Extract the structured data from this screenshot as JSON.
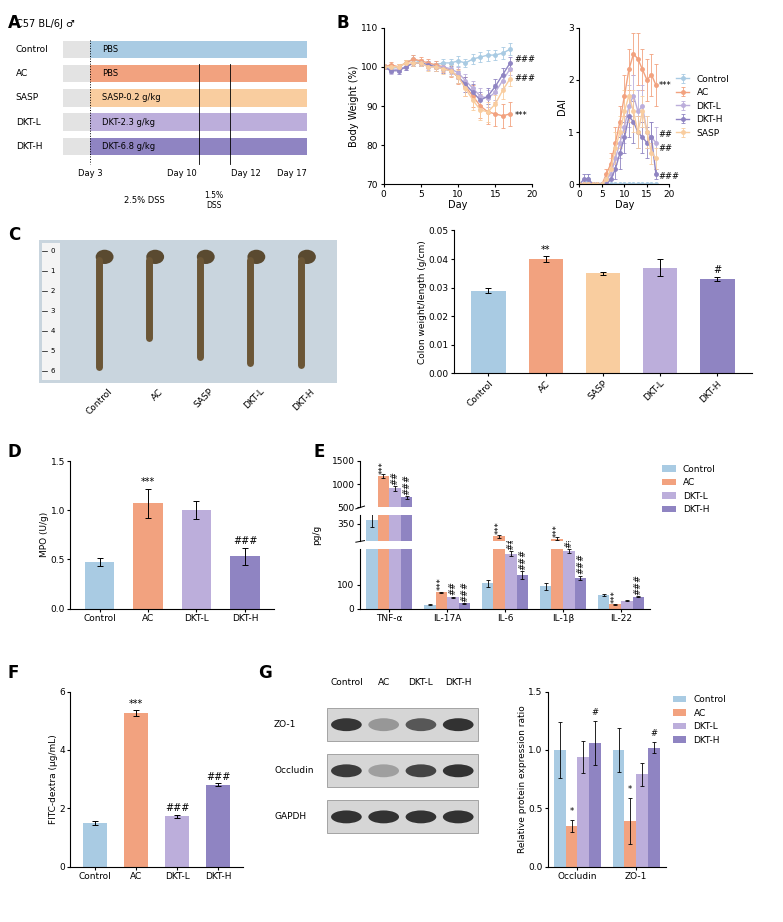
{
  "panel_labels": [
    "A",
    "B",
    "C",
    "D",
    "E",
    "F",
    "G"
  ],
  "diagram": {
    "title": "C57 BL/6J ♂",
    "groups": [
      {
        "name": "Control",
        "treatment": "PBS",
        "color": "#a9cbe3"
      },
      {
        "name": "AC",
        "treatment": "PBS",
        "color": "#f2a27f"
      },
      {
        "name": "SASP",
        "treatment": "SASP-0.2 g/kg",
        "color": "#f9cd9f"
      },
      {
        "name": "DKT-L",
        "treatment": "DKT-2.3 g/kg",
        "color": "#bcaedb"
      },
      {
        "name": "DKT-H",
        "treatment": "DKT-6.8 g/kg",
        "color": "#8f84c2"
      }
    ],
    "day_labels": [
      "Day 3",
      "Day 10",
      "Day 12",
      "Day 17"
    ],
    "phase_labels": [
      "2.5% DSS",
      "1.5%\nDSS"
    ]
  },
  "photo": {
    "labels": [
      "Control",
      "AC",
      "SASP",
      "DKT-L",
      "DKT-H"
    ],
    "ruler": [
      "0",
      "1",
      "2",
      "3",
      "4",
      "5",
      "6"
    ]
  },
  "blot": {
    "lanes": [
      "Control",
      "AC",
      "DKT-L",
      "DKT-H"
    ],
    "rows": [
      "ZO-1",
      "Occludin",
      "GAPDH"
    ]
  },
  "chart_data": [
    {
      "type": "line",
      "x_label": "Day",
      "y_label": "Body Weight (%)",
      "marker": "circle",
      "line_style": "solid",
      "x": [
        0,
        1,
        2,
        3,
        4,
        5,
        6,
        7,
        8,
        9,
        10,
        11,
        12,
        13,
        14,
        15,
        16,
        17
      ],
      "xlim": [
        0,
        20
      ],
      "xticks": [
        0,
        5,
        10,
        15,
        20
      ],
      "ylim": [
        70,
        110
      ],
      "yticks": [
        70,
        80,
        90,
        100,
        110
      ],
      "series": [
        {
          "name": "Control",
          "color": "#a9cbe3",
          "values": [
            100,
            99.5,
            100,
            101,
            102,
            101,
            100.5,
            100.5,
            101,
            101,
            101.5,
            101,
            102,
            102.5,
            103,
            103,
            103.5,
            104.5
          ],
          "errors": [
            0.5,
            0.8,
            0.6,
            0.8,
            0.9,
            0.7,
            0.8,
            0.9,
            1,
            1,
            1.2,
            1.1,
            1.2,
            1.3,
            1.4,
            1.3,
            1.5,
            1.6
          ]
        },
        {
          "name": "AC",
          "color": "#f2a27f",
          "values": [
            100,
            100.5,
            100,
            101,
            102,
            101.5,
            101,
            100.5,
            100,
            99,
            97.5,
            95,
            92.5,
            90,
            88.5,
            88,
            87.5,
            88
          ],
          "errors": [
            0.6,
            0.7,
            0.8,
            0.8,
            0.9,
            1,
            1,
            1.1,
            1.3,
            1.6,
            2,
            2.4,
            2.8,
            3,
            3.2,
            3,
            3,
            3
          ]
        },
        {
          "name": "DKT-L",
          "color": "#bcaedb",
          "values": [
            100,
            99,
            99.5,
            100,
            101,
            101,
            100,
            100,
            100,
            99.5,
            98.5,
            96.5,
            94.5,
            92.5,
            92,
            93.5,
            96.5,
            99.5
          ],
          "errors": [
            0.6,
            0.7,
            0.7,
            0.8,
            0.8,
            0.9,
            0.9,
            1,
            1.1,
            1.3,
            1.5,
            1.8,
            2,
            2.2,
            2.2,
            2,
            1.8,
            1.6
          ]
        },
        {
          "name": "DKT-H",
          "color": "#8f84c2",
          "values": [
            100,
            99,
            99,
            100,
            101,
            101,
            100.5,
            100,
            99.5,
            99,
            97.5,
            95.5,
            93.5,
            91.5,
            92.5,
            95,
            98,
            101
          ],
          "errors": [
            0.5,
            0.6,
            0.7,
            0.7,
            0.8,
            0.8,
            0.9,
            1,
            1.1,
            1.3,
            1.5,
            1.8,
            2,
            2.2,
            2,
            1.8,
            1.6,
            1.4
          ]
        },
        {
          "name": "SASP",
          "color": "#f9cd9f",
          "values": [
            100,
            100,
            100,
            101,
            101,
            101,
            100,
            100,
            99.5,
            99,
            97.5,
            94.5,
            91.5,
            89,
            88.5,
            90.5,
            94,
            97
          ],
          "errors": [
            0.6,
            0.6,
            0.7,
            0.8,
            0.8,
            0.9,
            1,
            1,
            1.2,
            1.4,
            1.7,
            2,
            2.4,
            2.6,
            2.6,
            2.4,
            2.2,
            2
          ]
        }
      ],
      "annotations": [
        {
          "text": "###",
          "x": 17.6,
          "y": 102
        },
        {
          "text": "###",
          "x": 17.6,
          "y": 97
        },
        {
          "text": "***",
          "x": 17.6,
          "y": 87.5
        }
      ]
    },
    {
      "type": "line",
      "x_label": "Day",
      "y_label": "DAI",
      "marker": "circle",
      "line_style": "solid",
      "legend": "center left",
      "x": [
        0,
        1,
        2,
        3,
        4,
        5,
        6,
        7,
        8,
        9,
        10,
        11,
        12,
        13,
        14,
        15,
        16,
        17
      ],
      "xlim": [
        0,
        20
      ],
      "xticks": [
        0,
        5,
        10,
        15,
        20
      ],
      "ylim": [
        0,
        3
      ],
      "yticks": [
        0,
        1,
        2,
        3
      ],
      "series": [
        {
          "name": "Control",
          "color": "#a9cbe3",
          "values": [
            0,
            0,
            0.1,
            0,
            0,
            0,
            0,
            0,
            0,
            0,
            0,
            0,
            0,
            0,
            0,
            0,
            0,
            0
          ],
          "errors": [
            0,
            0,
            0.1,
            0,
            0,
            0,
            0,
            0,
            0,
            0,
            0,
            0,
            0,
            0,
            0,
            0,
            0,
            0
          ]
        },
        {
          "name": "AC",
          "color": "#f2a27f",
          "values": [
            0,
            0,
            0,
            0,
            0,
            0,
            0.2,
            0.4,
            0.8,
            1.2,
            1.7,
            2.2,
            2.5,
            2.4,
            2.2,
            2.0,
            2.1,
            1.9
          ],
          "errors": [
            0,
            0,
            0,
            0,
            0,
            0,
            0.1,
            0.2,
            0.3,
            0.3,
            0.4,
            0.4,
            0.4,
            0.5,
            0.4,
            0.4,
            0.4,
            0.4
          ]
        },
        {
          "name": "DKT-L",
          "color": "#bcaedb",
          "values": [
            0,
            0,
            0,
            0,
            0,
            0,
            0.1,
            0.2,
            0.5,
            0.8,
            1.1,
            1.5,
            1.7,
            1.4,
            1.5,
            1.0,
            0.9,
            0.8
          ],
          "errors": [
            0,
            0,
            0,
            0,
            0,
            0,
            0.1,
            0.1,
            0.2,
            0.3,
            0.3,
            0.4,
            0.4,
            0.4,
            0.4,
            0.3,
            0.3,
            0.3
          ]
        },
        {
          "name": "DKT-H",
          "color": "#8f84c2",
          "values": [
            0,
            0.1,
            0.1,
            0,
            0,
            0,
            0,
            0.1,
            0.3,
            0.6,
            0.9,
            1.3,
            1.2,
            1.0,
            0.9,
            0.8,
            0.9,
            0.2
          ],
          "errors": [
            0,
            0.1,
            0.1,
            0,
            0,
            0,
            0,
            0.1,
            0.2,
            0.3,
            0.3,
            0.4,
            0.4,
            0.3,
            0.3,
            0.3,
            0.3,
            0.1
          ]
        },
        {
          "name": "SASP",
          "color": "#f9cd9f",
          "values": [
            0,
            0,
            0,
            0,
            0,
            0,
            0.1,
            0.3,
            0.7,
            1.0,
            1.4,
            1.7,
            1.4,
            1.0,
            1.4,
            1.0,
            0.6,
            0.5
          ],
          "errors": [
            0,
            0,
            0,
            0,
            0,
            0,
            0.1,
            0.2,
            0.3,
            0.3,
            0.4,
            0.5,
            0.4,
            0.3,
            0.3,
            0.3,
            0.2,
            0.2
          ]
        }
      ],
      "annotations": [
        {
          "text": "***",
          "x": 17.6,
          "y": 1.9
        },
        {
          "text": "##",
          "x": 17.6,
          "y": 0.95
        },
        {
          "text": "##",
          "x": 17.6,
          "y": 0.68
        },
        {
          "text": "###",
          "x": 17.6,
          "y": 0.15
        }
      ]
    },
    {
      "type": "bar",
      "y_label": "Colon weight/length (g/cm)",
      "categories": [
        "Control",
        "AC",
        "SASP",
        "DKT-L",
        "DKT-H"
      ],
      "values": [
        0.029,
        0.04,
        0.035,
        0.037,
        0.033
      ],
      "errors": [
        0.001,
        0.001,
        0.0005,
        0.003,
        0.0008
      ],
      "colors": [
        "#a9cbe3",
        "#f2a27f",
        "#f9cd9f",
        "#bcaedb",
        "#8f84c2"
      ],
      "annotations": [
        null,
        "**",
        null,
        null,
        "#"
      ],
      "ylim": [
        0,
        0.05
      ],
      "yticks": [
        {
          "value": 0,
          "label": "0.00"
        },
        {
          "value": 0.01,
          "label": "0.01"
        },
        {
          "value": 0.02,
          "label": "0.02"
        },
        {
          "value": 0.03,
          "label": "0.03"
        },
        {
          "value": 0.04,
          "label": "0.04"
        },
        {
          "value": 0.05,
          "label": "0.05"
        }
      ]
    },
    {
      "type": "bar",
      "y_label": "MPO (U/g)",
      "categories": [
        "Control",
        "AC",
        "DKT-L",
        "DKT-H"
      ],
      "values": [
        0.47,
        1.07,
        1.0,
        0.53
      ],
      "errors": [
        0.04,
        0.15,
        0.09,
        0.09
      ],
      "colors": [
        "#a9cbe3",
        "#f2a27f",
        "#bcaedb",
        "#8f84c2"
      ],
      "annotations": [
        null,
        "***",
        null,
        "###"
      ],
      "ylim": [
        0,
        1.5
      ],
      "yticks": [
        {
          "value": 0,
          "label": "0.0"
        },
        {
          "value": 0.5,
          "label": "0.5"
        },
        {
          "value": 1.0,
          "label": "1.0"
        },
        {
          "value": 1.5,
          "label": "1.5"
        }
      ]
    },
    {
      "type": "bar",
      "y_label": "pg/g",
      "legend": "upper left",
      "categories": [
        "TNF-α",
        "IL-17A",
        "IL-6",
        "IL-1β",
        "IL-22"
      ],
      "segments": [
        {
          "ylim": [
            0,
            250
          ],
          "yticks": [
            0,
            100
          ]
        },
        {
          "ylim": [
            250,
            400
          ],
          "yticks": [
            350
          ]
        },
        {
          "ylim": [
            500,
            1500
          ],
          "yticks": [
            500,
            1000,
            1500
          ]
        }
      ],
      "series": [
        {
          "name": "Control",
          "color": "#a9cbe3",
          "values": [
            370,
            15,
            105,
            93,
            58
          ],
          "errors": [
            40,
            2,
            15,
            15,
            4
          ],
          "annotations": [
            null,
            null,
            null,
            null,
            null
          ]
        },
        {
          "name": "AC",
          "color": "#f2a27f",
          "values": [
            1170,
            68,
            280,
            265,
            18
          ],
          "errors": [
            40,
            3,
            8,
            8,
            2
          ],
          "annotations": [
            "***",
            "***",
            "***",
            "***",
            "***"
          ]
        },
        {
          "name": "DKT-L",
          "color": "#bcaedb",
          "values": [
            910,
            47,
            230,
            240,
            32
          ],
          "errors": [
            50,
            3,
            10,
            8,
            2
          ],
          "annotations": [
            "##",
            "##",
            "##",
            "##",
            null
          ]
        },
        {
          "name": "DKT-H",
          "color": "#8f84c2",
          "values": [
            720,
            22,
            140,
            128,
            50
          ],
          "errors": [
            30,
            2,
            15,
            10,
            2
          ],
          "annotations": [
            "###",
            "###",
            "###",
            "###",
            "###"
          ]
        }
      ]
    },
    {
      "type": "bar",
      "y_label": "FITC-dextra (μg/mL)",
      "categories": [
        "Control",
        "AC",
        "DKT-L",
        "DKT-H"
      ],
      "values": [
        1.5,
        5.25,
        1.72,
        2.8
      ],
      "errors": [
        0.07,
        0.1,
        0.05,
        0.05
      ],
      "colors": [
        "#a9cbe3",
        "#f2a27f",
        "#bcaedb",
        "#8f84c2"
      ],
      "annotations": [
        null,
        "***",
        "###",
        "###"
      ],
      "ylim": [
        0,
        6
      ],
      "yticks": [
        0,
        2,
        4,
        6
      ]
    },
    {
      "type": "bar",
      "y_label": "Relative protein expression ratio",
      "legend": "upper left",
      "categories": [
        "Occludin",
        "ZO-1"
      ],
      "ylim": [
        0,
        1.5
      ],
      "yticks": [
        {
          "value": 0,
          "label": "0.0"
        },
        {
          "value": 0.5,
          "label": "0.5"
        },
        {
          "value": 1.0,
          "label": "1.0"
        },
        {
          "value": 1.5,
          "label": "1.5"
        }
      ],
      "series": [
        {
          "name": "Control",
          "color": "#a9cbe3",
          "values": [
            1.0,
            1.0
          ],
          "errors": [
            0.24,
            0.19
          ],
          "annotations": [
            null,
            null
          ]
        },
        {
          "name": "AC",
          "color": "#f2a27f",
          "values": [
            0.35,
            0.39
          ],
          "errors": [
            0.05,
            0.2
          ],
          "annotations": [
            "*",
            "*"
          ]
        },
        {
          "name": "DKT-L",
          "color": "#bcaedb",
          "values": [
            0.94,
            0.79
          ],
          "errors": [
            0.14,
            0.1
          ],
          "annotations": [
            null,
            null
          ]
        },
        {
          "name": "DKT-H",
          "color": "#8f84c2",
          "values": [
            1.06,
            1.02
          ],
          "errors": [
            0.19,
            0.05
          ],
          "annotations": [
            "#",
            "#"
          ]
        }
      ]
    }
  ]
}
